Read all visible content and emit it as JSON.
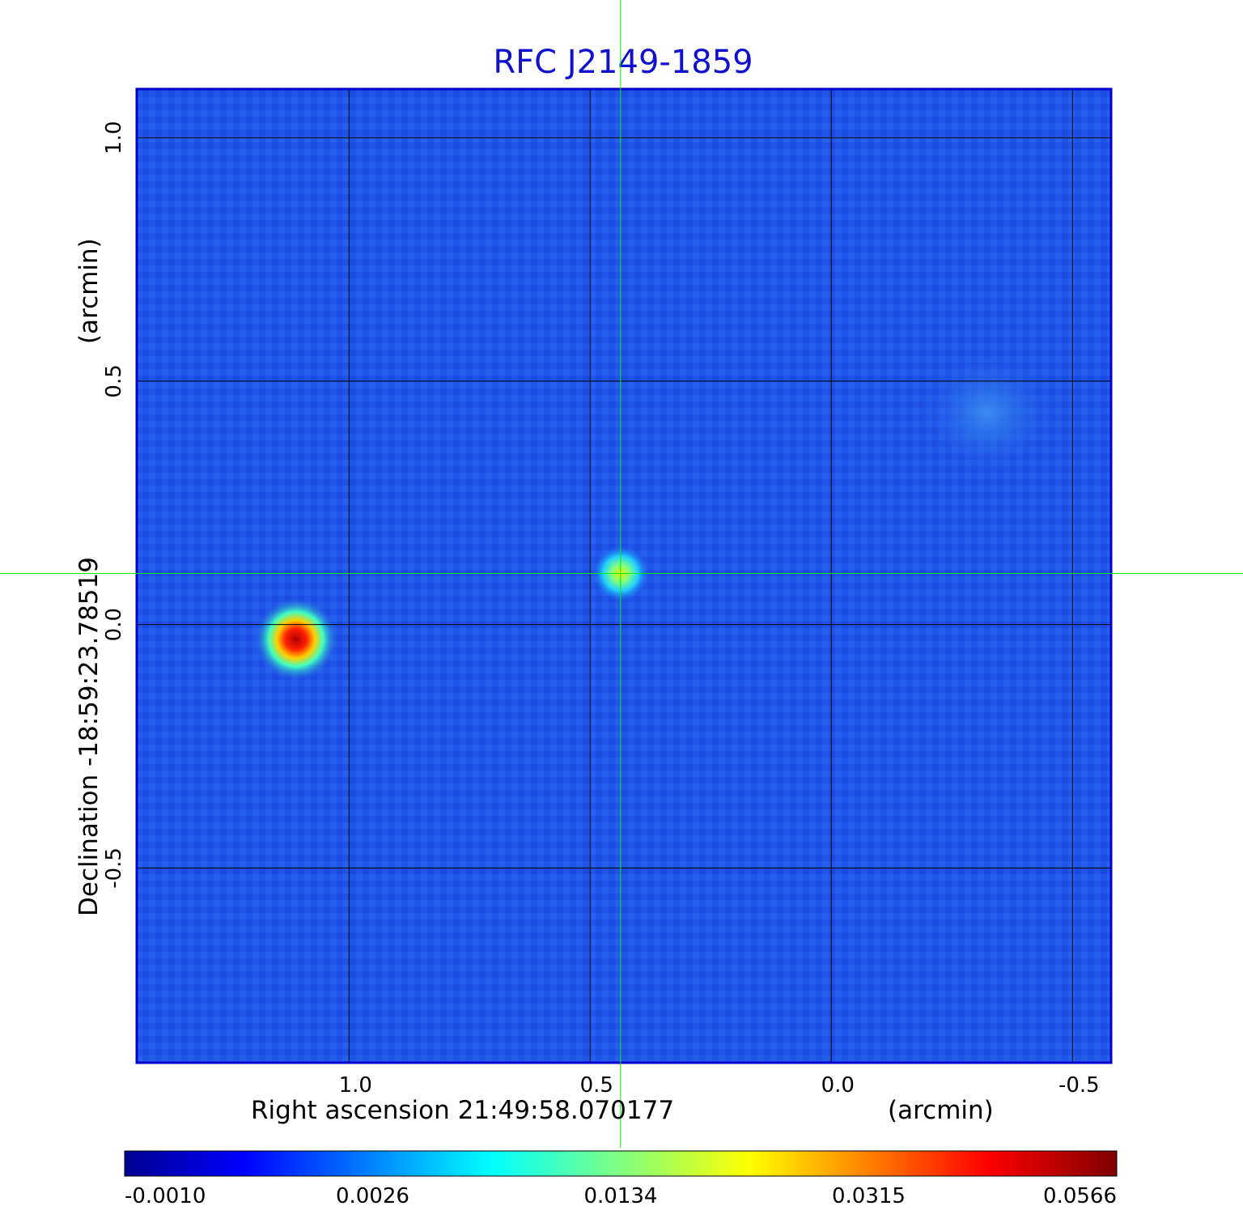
{
  "chart_data": {
    "type": "heatmap",
    "title": "RFC J2149-1859",
    "xlabel": "Right ascension  21:49:58.070177",
    "xunit": "(arcmin)",
    "ylabel": "Declination  -18:59:23.78519",
    "yunit": "(arcmin)",
    "x_ticks": [
      1.0,
      0.5,
      0.0,
      -0.5
    ],
    "x_tick_labels": [
      "1.0",
      "0.5",
      "0.0",
      "-0.5"
    ],
    "y_ticks": [
      1.0,
      0.5,
      0.0,
      -0.5
    ],
    "y_tick_labels": [
      "1.0",
      "0.5",
      "0.0",
      "-0.5"
    ],
    "xlim": [
      1.44,
      -0.58
    ],
    "ylim": [
      -0.9,
      1.1
    ],
    "grid": true,
    "crosshair": {
      "x": 0.437,
      "y": 0.105
    },
    "sources": [
      {
        "x": 1.11,
        "y": -0.03,
        "peak": 0.0566
      },
      {
        "x": 0.437,
        "y": 0.105,
        "peak": 0.0134
      }
    ],
    "colorbar": {
      "colormap": "jet",
      "ticks": [
        -0.001,
        0.0026,
        0.0134,
        0.0315,
        0.0566
      ],
      "tick_labels": [
        "-0.0010",
        "0.0026",
        "0.0134",
        "0.0315",
        "0.0566"
      ]
    }
  },
  "colors": {
    "title": "#1010d0",
    "frame": "#0000cc",
    "crosshair": "#00ee00",
    "grid": "#000000",
    "background_field": "#1f55e8"
  }
}
